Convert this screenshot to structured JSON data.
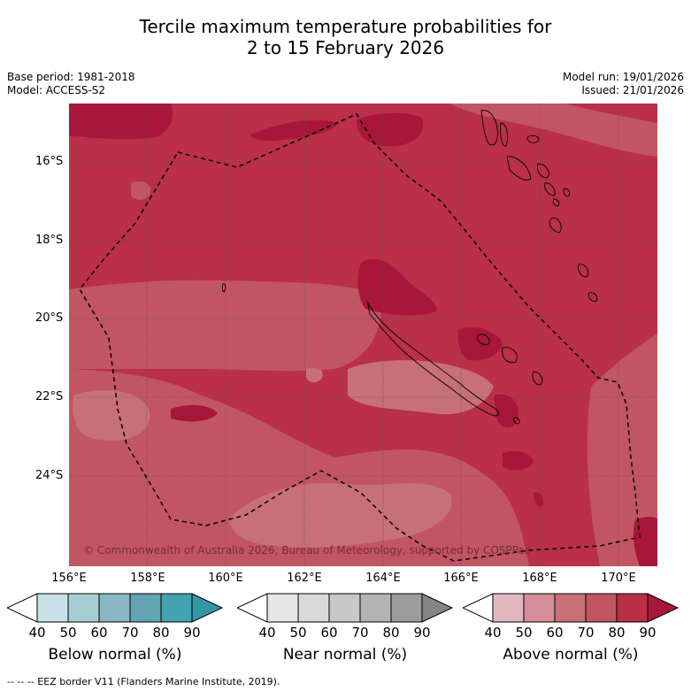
{
  "title_line1": "Tercile maximum temperature probabilities for",
  "title_line2": "2 to 15 February 2026",
  "base_period": "Base period: 1981-2018",
  "model": "Model: ACCESS-S2",
  "model_run": "Model run: 19/01/2026",
  "issued": "Issued: 21/01/2026",
  "lat_labels": [
    "16°S",
    "18°S",
    "20°S",
    "22°S",
    "24°S"
  ],
  "lon_labels": [
    "156°E",
    "158°E",
    "160°E",
    "162°E",
    "164°E",
    "166°E",
    "168°E",
    "170°E"
  ],
  "copyright": "© Commonwealth of Australia 2026, Bureau of Meteorology, supported by COSPPac",
  "colorbars": {
    "below": {
      "title": "Below normal (%)",
      "ticks": [
        "40",
        "50",
        "60",
        "70",
        "80",
        "90"
      ],
      "colors": [
        "#ffffff",
        "#c9e2e8",
        "#a7cdd4",
        "#87b8c2",
        "#62a4b1",
        "#44a1b0",
        "#3196a6"
      ]
    },
    "near": {
      "title": "Near normal (%)",
      "ticks": [
        "40",
        "50",
        "60",
        "70",
        "80",
        "90"
      ],
      "colors": [
        "#ffffff",
        "#e6e6e6",
        "#d9d9d9",
        "#c8c8c8",
        "#b3b3b3",
        "#9c9c9c",
        "#858585"
      ]
    },
    "above": {
      "title": "Above normal (%)",
      "ticks": [
        "40",
        "50",
        "60",
        "70",
        "80",
        "90"
      ],
      "colors": [
        "#ffffff",
        "#e0b7bf",
        "#d48e97",
        "#c77078",
        "#c25563",
        "#b93048",
        "#a8163a"
      ]
    }
  },
  "legend": "--  --  -- EEZ border V11 (Flanders Marine Institute, 2019).",
  "map_colors": {
    "c60": "#c77078",
    "c70": "#c25563",
    "c80": "#b93048",
    "c90": "#a8163a",
    "grid": "#555555"
  }
}
